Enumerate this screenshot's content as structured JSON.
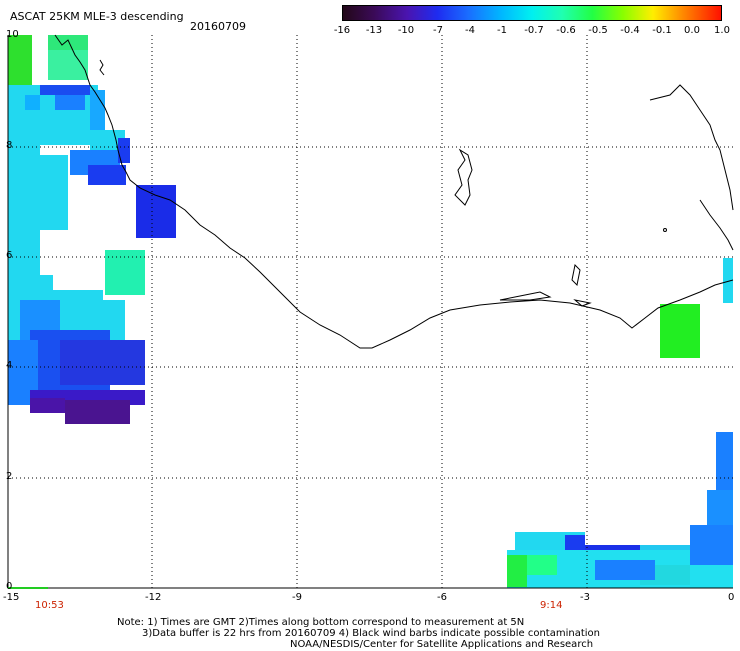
{
  "header": {
    "title": "ASCAT 25KM MLE-3 descending",
    "date": "20160709"
  },
  "colorbar": {
    "labels": [
      "-16",
      "-13",
      "-10",
      "-7",
      "-4",
      "-1",
      "-0.7",
      "-0.6",
      "-0.5",
      "-0.4",
      "-0.1",
      "0.0",
      "1.0"
    ],
    "colors": [
      "#2a0a1a",
      "#4a0a7a",
      "#2828e0",
      "#1a7aff",
      "#00c8ff",
      "#00f0e0",
      "#22ff88",
      "#44ff00",
      "#a0ff00",
      "#ffff00",
      "#ff9900",
      "#ff3300",
      "#ff0000"
    ]
  },
  "axes": {
    "x_ticks": [
      "-15",
      "-12",
      "-9",
      "-6",
      "-3",
      "0"
    ],
    "y_ticks": [
      "0",
      "2",
      "4",
      "6",
      "8",
      "10"
    ],
    "x_range": [
      -15,
      0
    ],
    "y_range": [
      0,
      10
    ],
    "grid": true
  },
  "times": {
    "left": "10:53",
    "right": "9:14"
  },
  "notes": {
    "line1": "Note: 1) Times are GMT 2)Times along bottom correspond to measurement at 5N",
    "line2": "3)Data buffer is 22 hrs from 20160709 4) Black wind barbs indicate possible contamination",
    "line3": "NOAA/NESDIS/Center for Satellite Applications and Research"
  }
}
